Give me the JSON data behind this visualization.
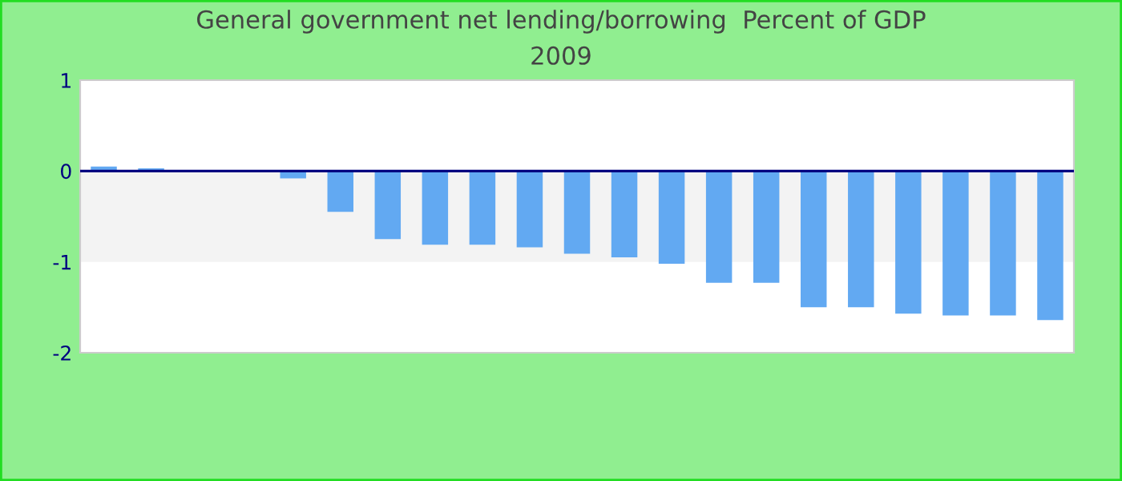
{
  "chart_data": {
    "type": "bar",
    "title": "General government net lending/borrowing  Percent of GDP",
    "subtitle": "2009",
    "categories": [
      null,
      null,
      null,
      null,
      null,
      null,
      null,
      null,
      null,
      null,
      null,
      null,
      null,
      null,
      null,
      null,
      null,
      null,
      null,
      null,
      null
    ],
    "values": [
      0.05,
      0.03,
      0,
      0,
      -0.08,
      -0.45,
      -0.75,
      -0.81,
      -0.81,
      -0.84,
      -0.91,
      -0.95,
      -1.02,
      -1.23,
      -1.23,
      -1.5,
      -1.5,
      -1.57,
      -1.59,
      -1.59,
      -1.64
    ],
    "color": "#62a9f2",
    "ylim": [
      -2,
      1
    ],
    "yticks": [
      -2,
      -1,
      0,
      1
    ],
    "bands": [
      {
        "axis": "y",
        "from": -1,
        "to": 0,
        "color": "#f3f3f3"
      }
    ],
    "ref_lines": [
      {
        "axis": "y",
        "value": 0,
        "color": "#000080"
      }
    ],
    "grid": false,
    "legend": false
  }
}
